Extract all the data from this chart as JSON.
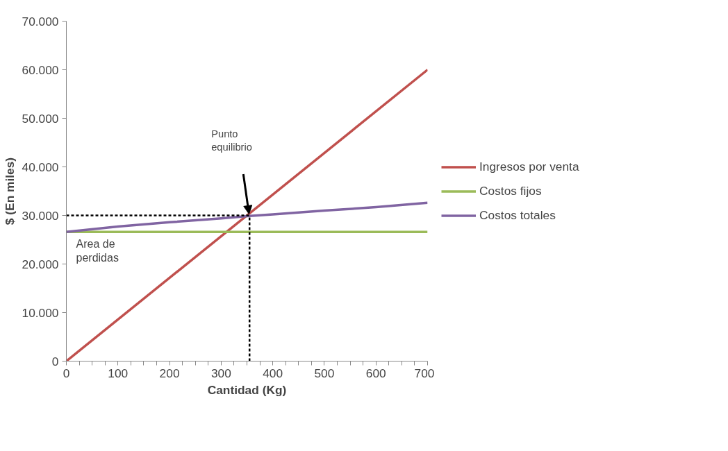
{
  "chart_data": {
    "type": "line",
    "xlabel": "Cantidad (Kg)",
    "ylabel": "$ (En miles)",
    "xlim": [
      0,
      700
    ],
    "ylim": [
      0,
      70000
    ],
    "xticks": [
      0,
      {
        "value": 25,
        "label": null
      },
      {
        "value": 50,
        "label": null
      },
      {
        "value": 75,
        "label": null
      },
      100,
      {
        "value": 125,
        "label": null
      },
      {
        "value": 150,
        "label": null
      },
      {
        "value": 175,
        "label": null
      },
      200,
      {
        "value": 225,
        "label": null
      },
      {
        "value": 250,
        "label": null
      },
      {
        "value": 275,
        "label": null
      },
      300,
      {
        "value": 325,
        "label": null
      },
      {
        "value": 350,
        "label": null
      },
      {
        "value": 375,
        "label": null
      },
      400,
      {
        "value": 425,
        "label": null
      },
      {
        "value": 450,
        "label": null
      },
      {
        "value": 475,
        "label": null
      },
      500,
      {
        "value": 525,
        "label": null
      },
      {
        "value": 550,
        "label": null
      },
      {
        "value": 575,
        "label": null
      },
      600,
      {
        "value": 625,
        "label": null
      },
      {
        "value": 650,
        "label": null
      },
      {
        "value": 675,
        "label": null
      },
      700
    ],
    "yticks": [
      {
        "value": 0,
        "label": "0"
      },
      {
        "value": 10000,
        "label": "10.000"
      },
      {
        "value": 20000,
        "label": "20.000"
      },
      {
        "value": 30000,
        "label": "30.000"
      },
      {
        "value": 40000,
        "label": "40.000"
      },
      {
        "value": 50000,
        "label": "50.000"
      },
      {
        "value": 60000,
        "label": "60.000"
      },
      {
        "value": 70000,
        "label": "70.000"
      }
    ],
    "grid": false,
    "legend": "right",
    "marker": "none",
    "line_style": "solid",
    "x": [
      0,
      100,
      200,
      300,
      355,
      400,
      500,
      600,
      700
    ],
    "series": [
      {
        "name": "Ingresos por venta",
        "color": "#c0504d",
        "x": [
          0,
          700
        ],
        "values": [
          0,
          60000
        ]
      },
      {
        "name": "Costos fijos",
        "color": "#9bbb59",
        "values": [
          26600,
          26600,
          26600,
          26600,
          26600,
          26600,
          26600,
          26600,
          26600
        ]
      },
      {
        "name": "Costos totales",
        "color": "#8064a2",
        "values": [
          26600,
          27700,
          28600,
          29400,
          29900,
          30200,
          31000,
          31700,
          32600
        ]
      },
      {
        "color": "#000000",
        "line_style": "dashed",
        "x": [
          0,
          355
        ],
        "values": [
          30000,
          30000
        ]
      },
      {
        "color": "#000000",
        "line_style": "dashed",
        "x": [
          355,
          355
        ],
        "values": [
          0,
          30000
        ]
      }
    ],
    "annotations": [
      "Punto equilibrio",
      "Area de perdidas"
    ]
  }
}
